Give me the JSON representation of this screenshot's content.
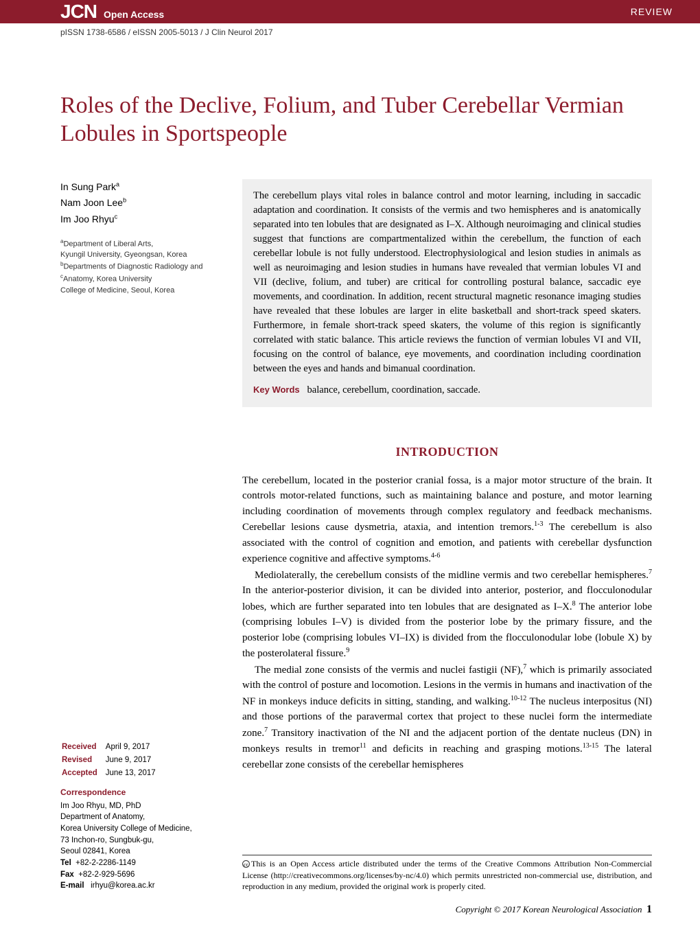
{
  "header": {
    "logo": "JCN",
    "open_access": "Open Access",
    "section": "REVIEW",
    "bar_color": "#8c1c2c",
    "text_color": "#ffffff"
  },
  "issn_line": "pISSN 1738-6586 / eISSN 2005-5013  /  J Clin Neurol 2017",
  "title": "Roles of the Declive, Folium, and Tuber Cerebellar Vermian Lobules in Sportspeople",
  "title_color": "#8c1c2c",
  "title_fontsize": 34,
  "authors": [
    {
      "name": "In Sung Park",
      "sup": "a"
    },
    {
      "name": "Nam Joon Lee",
      "sup": "b"
    },
    {
      "name": "Im Joo Rhyu",
      "sup": "c"
    }
  ],
  "affiliations_html": "<span class='aff-sup'>a</span>Department of Liberal Arts,<br> Kyungil University, Gyeongsan, Korea<br><span class='aff-sup'>b</span>Departments of Diagnostic Radiology and<br><span class='aff-sup'>c</span>Anatomy, Korea University<br> College of Medicine, Seoul, Korea",
  "abstract": "The cerebellum plays vital roles in balance control and motor learning, including in saccadic adaptation and coordination. It consists of the vermis and two hemispheres and is anatomically separated into ten lobules that are designated as I–X. Although neuroimaging and clinical studies suggest that functions are compartmentalized within the cerebellum, the function of each cerebellar lobule is not fully understood. Electrophysiological and lesion studies in animals as well as neuroimaging and lesion studies in humans have revealed that vermian lobules VI and VII (declive, folium, and tuber) are critical for controlling postural balance, saccadic eye movements, and coordination. In addition, recent structural magnetic resonance imaging studies have revealed that these lobules are larger in elite basketball and short-track speed skaters. Furthermore, in female short-track speed skaters, the volume of this region is significantly correlated with static balance. This article reviews the function of vermian lobules VI and VII, focusing on the control of balance, eye movements, and coordination including coordination between the eyes and hands and bimanual coordination.",
  "keywords_label": "Key Words",
  "keywords": "balance, cerebellum, coordination, saccade.",
  "intro_heading": "INTRODUCTION",
  "intro_p1": "The cerebellum, located in the posterior cranial fossa, is a major motor structure of the brain. It controls motor-related functions, such as maintaining balance and posture, and motor learning including coordination of movements through complex regulatory and feedback mechanisms. Cerebellar lesions cause dysmetria, ataxia, and intention tremors.<span class='sup-ref'>1-3</span> The cerebellum is also associated with the control of cognition and emotion, and patients with cerebellar dysfunction experience cognitive and affective symptoms.<span class='sup-ref'>4-6</span>",
  "intro_p2": "Mediolaterally, the cerebellum consists of the midline vermis and two cerebellar hemispheres.<span class='sup-ref'>7</span> In the anterior-posterior division, it can be divided into anterior, posterior, and flocculonodular lobes, which are further separated into ten lobules that are designated as I–X.<span class='sup-ref'>8</span> The anterior lobe (comprising lobules I–V) is divided from the posterior lobe by the primary fissure, and the posterior lobe (comprising lobules VI–IX) is divided from the flocculonodular lobe (lobule X) by the posterolateral fissure.<span class='sup-ref'>9</span>",
  "intro_p3": "The medial zone consists of the vermis and nuclei fastigii (NF),<span class='sup-ref'>7</span> which is primarily associated with the control of posture and locomotion. Lesions in the vermis in humans and inactivation of the NF in monkeys induce deficits in sitting, standing, and walking.<span class='sup-ref'>10-12</span> The nucleus interpositus (NI) and those portions of the paravermal cortex that project to these nuclei form the intermediate zone.<span class='sup-ref'>7</span> Transitory inactivation of the NI and the adjacent portion of the dentate nucleus (DN) in monkeys results in tremor<span class='sup-ref'>11</span> and deficits in reaching and grasping motions.<span class='sup-ref'>13-15</span> The lateral cerebellar zone consists of the cerebellar hemispheres",
  "dates": {
    "received_label": "Received",
    "received": "April 9, 2017",
    "revised_label": "Revised",
    "revised": "June 9, 2017",
    "accepted_label": "Accepted",
    "accepted": "June 13, 2017"
  },
  "correspondence": {
    "label": "Correspondence",
    "name": "Im Joo Rhyu, MD, PhD",
    "line1": "Department of Anatomy,",
    "line2": "Korea University College of Medicine,",
    "line3": "73 Inchon-ro, Sungbuk-gu,",
    "line4": "Seoul 02841, Korea",
    "tel_label": "Tel",
    "tel": "+82-2-2286-1149",
    "fax_label": "Fax",
    "fax": "+82-2-929-5696",
    "email_label": "E-mail",
    "email": "irhyu@korea.ac.kr"
  },
  "license": "This is an Open Access article distributed under the terms of the Creative Commons Attribution Non-Commercial License (http://creativecommons.org/licenses/by-nc/4.0) which permits unrestricted non-commercial use, distribution, and reproduction in any medium, provided the original work is properly cited.",
  "copyright": "Copyright © 2017 Korean Neurological Association",
  "page_number": "1",
  "abstract_bg": "#efefef"
}
